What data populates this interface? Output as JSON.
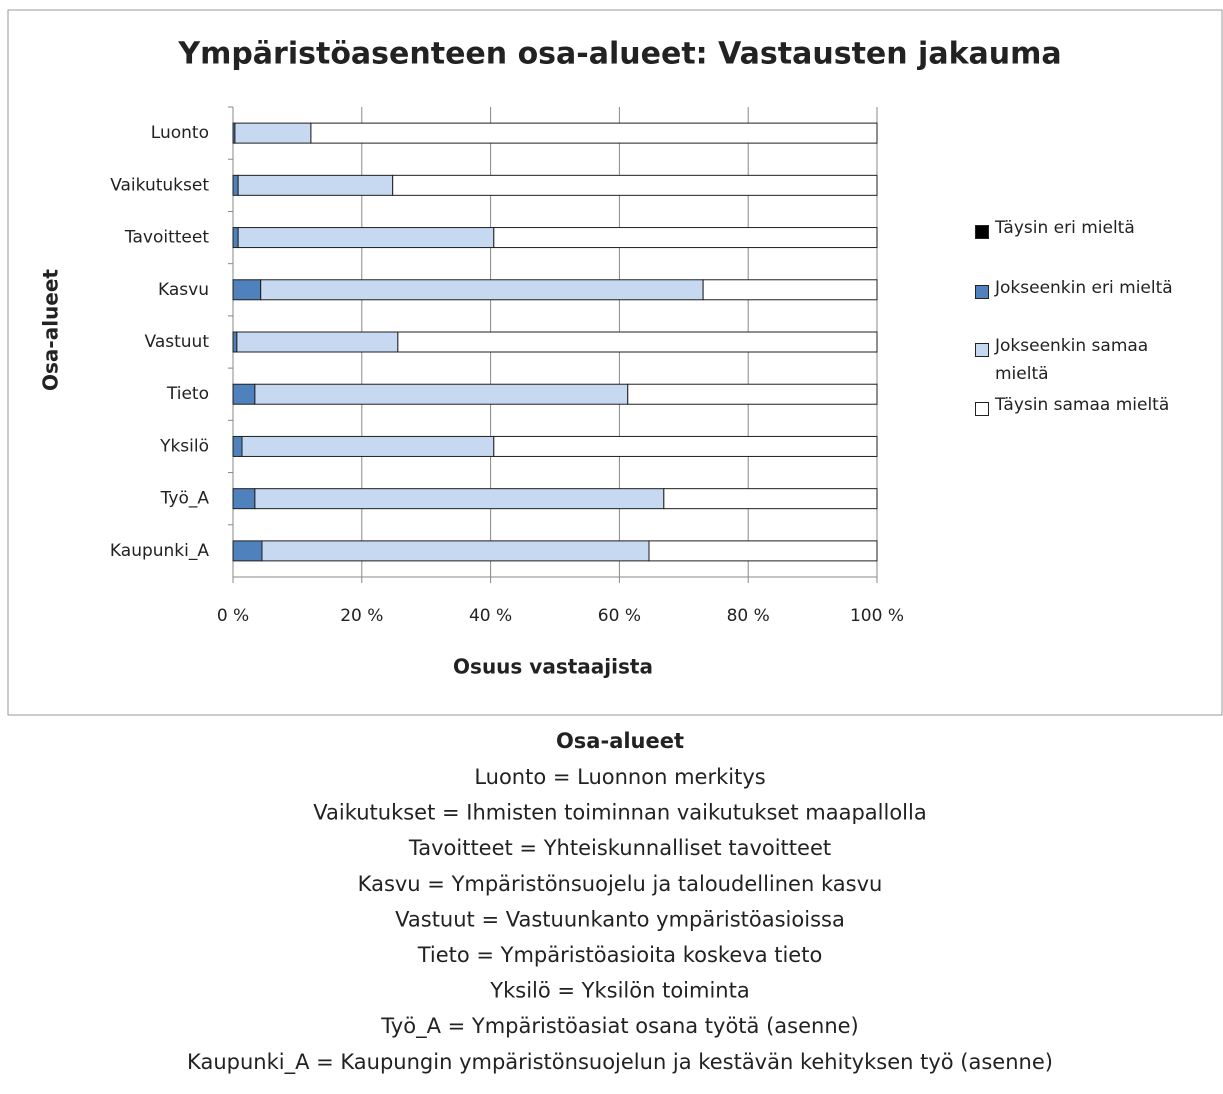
{
  "chart_data": {
    "type": "stacked_barh",
    "title": "Ympäristöasenteen osa-alueet: Vastausten jakauma",
    "xlabel": "Osuus vastaajista",
    "ylabel": "Osa-alueet",
    "categories": [
      "Luonto",
      "Vaikutukset",
      "Tavoitteet",
      "Kasvu",
      "Vastuut",
      "Tieto",
      "Yksilö",
      "Työ_A",
      "Kaupunki_A"
    ],
    "series": [
      {
        "name": "Täysin eri mieltä",
        "color": "#000000",
        "values": [
          0,
          0,
          0,
          0,
          0,
          0,
          0,
          0,
          0
        ]
      },
      {
        "name": "Jokseenkin eri mieltä",
        "color": "#4f81bd",
        "values": [
          0.3,
          0.8,
          0.8,
          4.3,
          0.6,
          3.4,
          1.4,
          3.4,
          4.5
        ]
      },
      {
        "name": "Jokseenkin samaa mieltä",
        "color": "#c6d9f1",
        "values": [
          11.8,
          24.0,
          39.7,
          68.7,
          25.0,
          57.9,
          39.1,
          63.5,
          60.1
        ]
      },
      {
        "name": "Täysin samaa mieltä",
        "color": "#ffffff",
        "values": [
          87.9,
          75.2,
          59.5,
          27.0,
          74.4,
          38.7,
          59.5,
          33.1,
          35.4
        ]
      }
    ],
    "xlim": [
      0,
      100
    ],
    "xticks": [
      {
        "value": 0,
        "label": "0 %"
      },
      {
        "value": 20,
        "label": "20 %"
      },
      {
        "value": 40,
        "label": "40 %"
      },
      {
        "value": 60,
        "label": "60 %"
      },
      {
        "value": 80,
        "label": "80 %"
      },
      {
        "value": 100,
        "label": "100 %"
      }
    ],
    "grid": true,
    "legend": "right"
  },
  "notes": {
    "title": "Osa-alueet",
    "lines": [
      "Luonto = Luonnon merkitys",
      "Vaikutukset = Ihmisten toiminnan vaikutukset maapallolla",
      "Tavoitteet = Yhteiskunnalliset tavoitteet",
      "Kasvu = Ympäristönsuojelu ja taloudellinen kasvu",
      "Vastuut = Vastuunkanto ympäristöasioissa",
      "Tieto = Ympäristöasioita koskeva tieto",
      "Yksilö = Yksilön toiminta",
      "Työ_A = Ympäristöasiat osana työtä (asenne)",
      "Kaupunki_A = Kaupungin ympäristönsuojelun ja kestävän kehityksen työ (asenne)"
    ]
  }
}
